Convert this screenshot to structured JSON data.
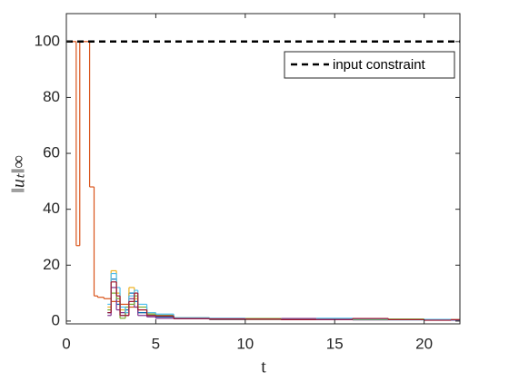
{
  "chart_data": {
    "type": "stairs",
    "xlabel": "t",
    "ylabel": "‖uₜ‖∞",
    "xlim": [
      0,
      22
    ],
    "ylim": [
      -1,
      110
    ],
    "xticks": [
      0,
      5,
      10,
      15,
      20
    ],
    "yticks": [
      0,
      20,
      40,
      60,
      80,
      100
    ],
    "hlines": [
      {
        "name": "input constraint",
        "y": 100,
        "color": "#000000"
      }
    ],
    "legend": "top-right",
    "series": [
      {
        "color": "#D95319",
        "x": [
          0,
          0.55,
          0.75,
          1.3,
          1.55,
          1.75,
          2.1,
          2.5,
          3,
          3.5,
          4,
          4.5,
          5,
          6,
          8,
          10,
          12,
          15,
          18,
          21.5
        ],
        "values": [
          100,
          27,
          100,
          48,
          9,
          8.5,
          8,
          7,
          6,
          5,
          3,
          2,
          1.5,
          1,
          0.8,
          0.7,
          0.6,
          0.5,
          0.5,
          0.4
        ]
      },
      {
        "color": "#0072BD",
        "x": [
          2.3,
          2.5,
          2.8,
          3,
          3.3,
          3.5,
          3.8,
          4,
          4.5,
          5,
          6,
          8,
          10,
          12,
          14,
          16,
          18,
          20,
          21.5
        ],
        "values": [
          3,
          15,
          6,
          2,
          4,
          10,
          7,
          3,
          2,
          1.5,
          1,
          0.6,
          0.8,
          0.5,
          0.7,
          0.6,
          0.5,
          0.6,
          0.4
        ]
      },
      {
        "color": "#EDB120",
        "x": [
          2.3,
          2.5,
          2.8,
          3,
          3.3,
          3.5,
          3.8,
          4,
          4.5,
          5,
          6,
          8,
          10,
          12,
          14,
          16,
          18,
          20,
          21.5
        ],
        "values": [
          5,
          18,
          10,
          4,
          3,
          12,
          8,
          4,
          3,
          2,
          1.2,
          0.9,
          0.5,
          0.7,
          0.6,
          0.8,
          0.5,
          0.4,
          0.5
        ]
      },
      {
        "color": "#7E2F8E",
        "x": [
          2.3,
          2.5,
          2.8,
          3,
          3.3,
          3.5,
          3.8,
          4,
          4.5,
          5,
          6,
          8,
          10,
          12,
          14,
          16,
          18,
          20,
          21.5
        ],
        "values": [
          2,
          12,
          4,
          3,
          2,
          8,
          5,
          2,
          1.5,
          1,
          0.8,
          0.5,
          0.6,
          0.9,
          0.5,
          0.4,
          0.6,
          0.5,
          0.3
        ]
      },
      {
        "color": "#77AC30",
        "x": [
          2.3,
          2.5,
          2.8,
          3,
          3.3,
          3.5,
          3.8,
          4,
          4.5,
          5,
          6,
          8,
          10,
          12,
          14,
          16,
          18,
          20,
          21.5
        ],
        "values": [
          4,
          10,
          8,
          1,
          5,
          6,
          9,
          5,
          2.5,
          2,
          1,
          0.7,
          0.9,
          0.6,
          0.8,
          0.5,
          0.7,
          0.4,
          0.5
        ]
      },
      {
        "color": "#4DBEEE",
        "x": [
          2.3,
          2.5,
          2.8,
          3,
          3.3,
          3.5,
          3.8,
          4,
          4.5,
          5,
          6,
          8,
          10,
          12,
          14,
          16,
          18,
          20,
          21.5
        ],
        "values": [
          6,
          17,
          12,
          5,
          3,
          9,
          11,
          6,
          3,
          2.5,
          1.2,
          1,
          0.6,
          0.5,
          1,
          0.7,
          0.4,
          0.6,
          0.4
        ]
      },
      {
        "color": "#A2142F",
        "x": [
          2.3,
          2.5,
          2.8,
          3,
          3.3,
          3.5,
          3.8,
          4,
          4.5,
          5,
          6,
          8,
          10,
          12,
          14,
          16,
          18,
          20,
          21.5
        ],
        "values": [
          3,
          14,
          9,
          2,
          2,
          7,
          10,
          4,
          2,
          1.8,
          0.9,
          0.8,
          0.7,
          0.5,
          0.6,
          0.9,
          0.5,
          0.3,
          0.5
        ]
      }
    ]
  }
}
